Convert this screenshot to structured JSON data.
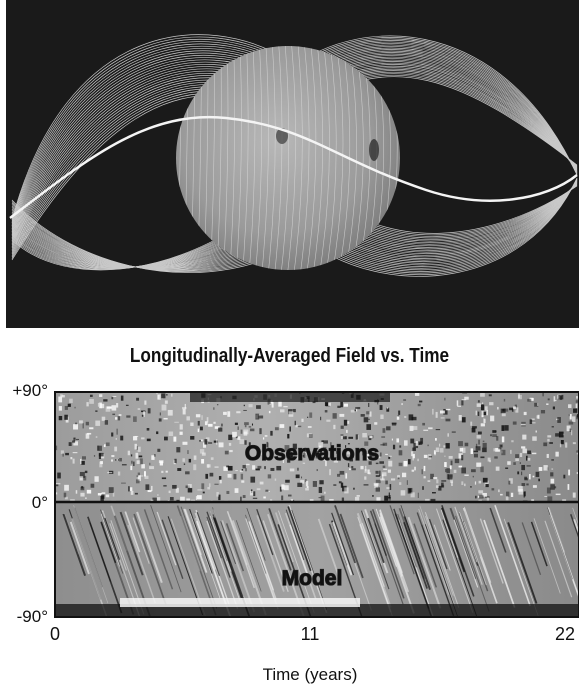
{
  "figure": {
    "title": "Longitudinally-Averaged Field vs. Time"
  },
  "chart_data": {
    "type": "heatmap",
    "title": "Longitudinally-Averaged Field vs. Time",
    "xlabel": "Time (years)",
    "ylabel": "",
    "x_ticks": [
      "0",
      "11",
      "22"
    ],
    "y_ticks": [
      "+90°",
      "0°",
      "-90°"
    ],
    "xlim": [
      0,
      22
    ],
    "ylim": [
      -90,
      90
    ],
    "panels": [
      {
        "label": "Observations",
        "lat_range": [
          0,
          90
        ]
      },
      {
        "label": "Model",
        "lat_range": [
          -90,
          0
        ]
      }
    ],
    "colors": {
      "background": "#ffffff",
      "panel_dark": "#1a1a1a",
      "sphere": "#9a9a9a"
    }
  }
}
